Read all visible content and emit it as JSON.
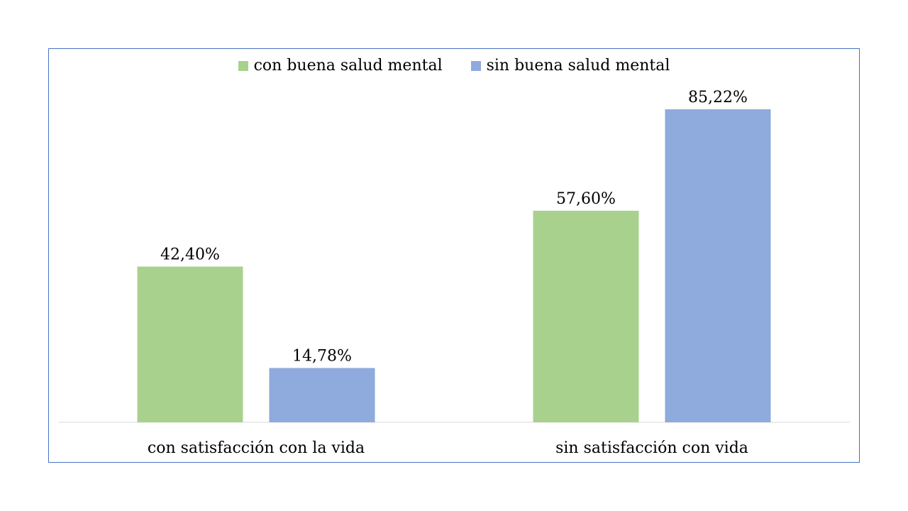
{
  "chart_data": {
    "type": "bar",
    "categories": [
      "con satisfacción con la vida",
      "sin satisfacción con vida"
    ],
    "series": [
      {
        "name": "con buena salud mental",
        "color": "#a9d18e",
        "values": [
          42.4,
          57.6
        ],
        "labels": [
          "42,40%",
          "57,60%"
        ]
      },
      {
        "name": "sin buena salud mental",
        "color": "#8faadc",
        "values": [
          14.78,
          85.22
        ],
        "labels": [
          "14,78%",
          "85,22%"
        ]
      }
    ],
    "ylim": [
      0,
      100
    ],
    "grid": false,
    "legend_position": "top-center",
    "axis_color": "#d9d9d9",
    "border_color": "#4472c4"
  }
}
